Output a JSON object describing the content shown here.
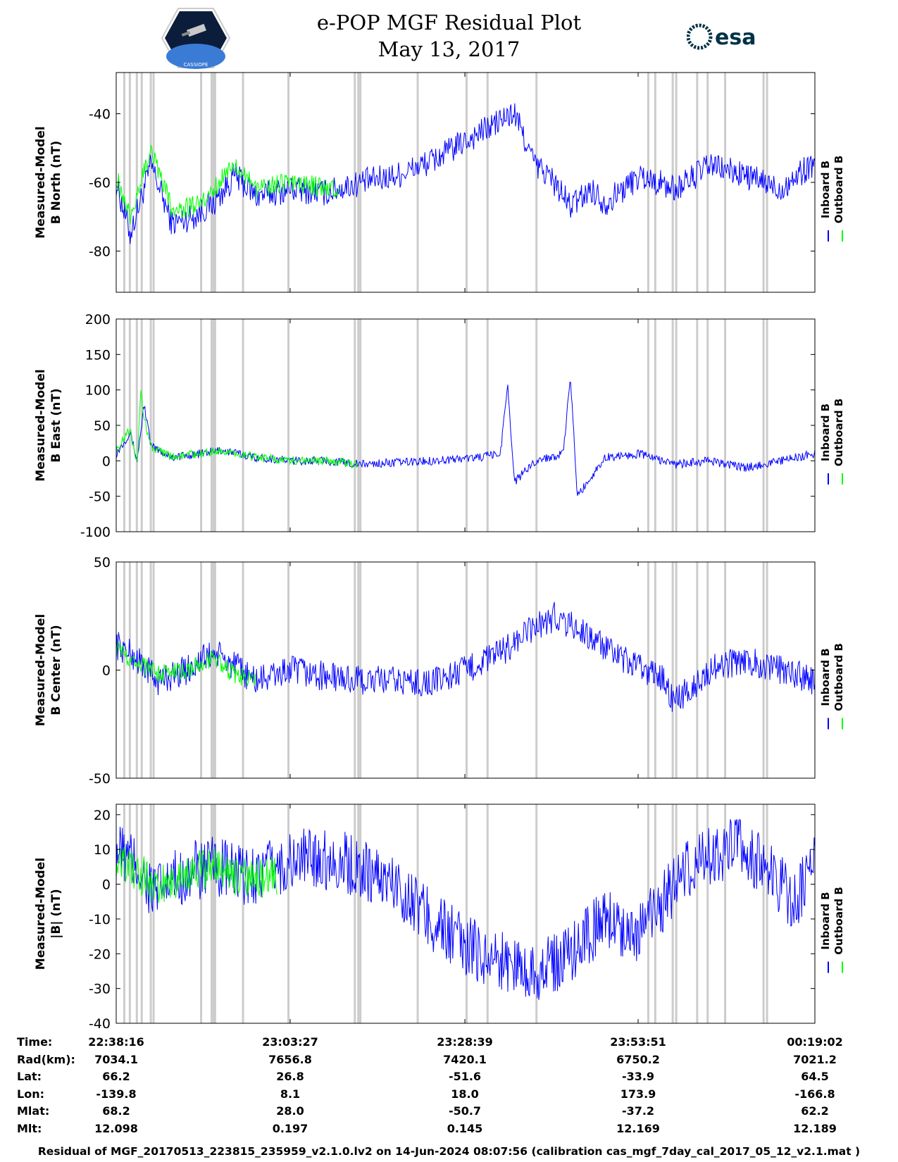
{
  "header": {
    "title": "e-POP MGF Residual Plot",
    "date": "May 13, 2017",
    "left_logo_text": "CASSIOPE",
    "right_logo_text": "esa"
  },
  "colors": {
    "inboard": "#0000ff",
    "outboard": "#00ff00",
    "gaps": "#cccccc"
  },
  "chart_data": [
    {
      "type": "line",
      "ylabel": [
        "Measured-Model",
        "B North (nT)"
      ],
      "ylim": [
        -92,
        -28
      ],
      "yticks": [
        -40,
        -60,
        -80
      ],
      "legend": [
        "Inboard B",
        "Outboard B"
      ],
      "series": [
        {
          "name": "Inboard B",
          "x": [
            0,
            0.02,
            0.05,
            0.08,
            0.11,
            0.14,
            0.17,
            0.2,
            0.25,
            0.3,
            0.35,
            0.4,
            0.45,
            0.5,
            0.55,
            0.57,
            0.6,
            0.62,
            0.65,
            0.68,
            0.7,
            0.75,
            0.8,
            0.85,
            0.9,
            0.95,
            1
          ],
          "y": [
            -60,
            -75,
            -55,
            -72,
            -70,
            -66,
            -58,
            -64,
            -62,
            -63,
            -60,
            -58,
            -54,
            -48,
            -42,
            -40,
            -55,
            -58,
            -67,
            -62,
            -66,
            -58,
            -62,
            -55,
            -58,
            -62,
            -54
          ],
          "spread": 8
        },
        {
          "name": "Outboard B",
          "x": [
            0,
            0.02,
            0.05,
            0.08,
            0.11,
            0.14,
            0.17,
            0.2,
            0.25,
            0.32
          ],
          "y": [
            -58,
            -70,
            -50,
            -68,
            -67,
            -62,
            -54,
            -62,
            -60,
            -62
          ],
          "spread": 6
        }
      ]
    },
    {
      "type": "line",
      "ylabel": [
        "Measured-Model",
        "B East (nT)"
      ],
      "ylim": [
        -100,
        200
      ],
      "yticks": [
        200,
        150,
        100,
        50,
        0,
        -50,
        -100
      ],
      "legend": [
        "Inboard B",
        "Outboard B"
      ],
      "series": [
        {
          "name": "Inboard B",
          "x": [
            0,
            0.02,
            0.03,
            0.04,
            0.05,
            0.08,
            0.12,
            0.15,
            0.2,
            0.25,
            0.3,
            0.35,
            0.45,
            0.52,
            0.55,
            0.56,
            0.57,
            0.6,
            0.64,
            0.65,
            0.66,
            0.7,
            0.75,
            0.8,
            0.85,
            0.9,
            0.95,
            1
          ],
          "y": [
            10,
            40,
            0,
            80,
            20,
            5,
            10,
            15,
            5,
            0,
            0,
            -5,
            0,
            5,
            10,
            110,
            -30,
            0,
            10,
            120,
            -50,
            5,
            10,
            -5,
            0,
            -10,
            0,
            10
          ],
          "spread": 12
        },
        {
          "name": "Outboard B",
          "x": [
            0,
            0.02,
            0.03,
            0.035,
            0.04,
            0.05,
            0.08,
            0.12,
            0.15,
            0.2,
            0.25,
            0.3,
            0.345
          ],
          "y": [
            15,
            45,
            -5,
            100,
            60,
            20,
            5,
            10,
            15,
            5,
            0,
            0,
            -5
          ],
          "spread": 12
        }
      ]
    },
    {
      "type": "line",
      "ylabel": [
        "Measured-Model",
        "B Center (nT)"
      ],
      "ylim": [
        -50,
        50
      ],
      "yticks": [
        50,
        0,
        -50
      ],
      "legend": [
        "Inboard B",
        "Outboard B"
      ],
      "series": [
        {
          "name": "Inboard B",
          "x": [
            0,
            0.03,
            0.06,
            0.1,
            0.14,
            0.2,
            0.25,
            0.3,
            0.35,
            0.4,
            0.45,
            0.5,
            0.55,
            0.6,
            0.63,
            0.68,
            0.72,
            0.78,
            0.8,
            0.85,
            0.9,
            0.95,
            1
          ],
          "y": [
            12,
            5,
            -5,
            0,
            8,
            -5,
            0,
            -3,
            -5,
            -5,
            -6,
            0,
            8,
            20,
            25,
            15,
            5,
            -3,
            -15,
            0,
            5,
            0,
            -5
          ],
          "spread": 14
        },
        {
          "name": "Outboard B",
          "x": [
            0,
            0.03,
            0.06,
            0.1,
            0.14,
            0.17,
            0.2
          ],
          "y": [
            10,
            3,
            -2,
            0,
            5,
            -2,
            -4
          ],
          "spread": 9
        }
      ]
    },
    {
      "type": "line",
      "ylabel": [
        "Measured-Model",
        "|B| (nT)"
      ],
      "ylim": [
        -40,
        23
      ],
      "yticks": [
        20,
        10,
        0,
        -10,
        -20,
        -30,
        -40
      ],
      "legend": [
        "Inboard B",
        "Outboard B"
      ],
      "series": [
        {
          "name": "Inboard B",
          "x": [
            0,
            0.03,
            0.055,
            0.1,
            0.14,
            0.18,
            0.22,
            0.28,
            0.33,
            0.4,
            0.45,
            0.5,
            0.55,
            0.6,
            0.63,
            0.7,
            0.75,
            0.8,
            0.84,
            0.88,
            0.9,
            0.95,
            0.97,
            1
          ],
          "y": [
            10,
            5,
            -3,
            3,
            5,
            2,
            4,
            8,
            6,
            0,
            -10,
            -18,
            -22,
            -25,
            -23,
            -10,
            -14,
            0,
            8,
            10,
            10,
            0,
            -5,
            5
          ],
          "spread": 18
        },
        {
          "name": "Outboard B",
          "x": [
            0,
            0.03,
            0.055,
            0.1,
            0.14,
            0.18,
            0.23
          ],
          "y": [
            8,
            4,
            -1,
            3,
            5,
            2,
            2
          ],
          "spread": 12
        }
      ]
    }
  ],
  "x_axis": {
    "ticks": [
      "22:38:16",
      "23:03:27",
      "23:28:39",
      "23:53:51",
      "00:19:02"
    ]
  },
  "orbit_table": {
    "rows": [
      {
        "label": "Time:",
        "values": [
          "22:38:16",
          "23:03:27",
          "23:28:39",
          "23:53:51",
          "00:19:02"
        ]
      },
      {
        "label": "Rad(km):",
        "values": [
          "7034.1",
          "7656.8",
          "7420.1",
          "6750.2",
          "7021.2"
        ]
      },
      {
        "label": "Lat:",
        "values": [
          "66.2",
          "26.8",
          "-51.6",
          "-33.9",
          "64.5"
        ]
      },
      {
        "label": "Lon:",
        "values": [
          "-139.8",
          "8.1",
          "18.0",
          "173.9",
          "-166.8"
        ]
      },
      {
        "label": "Mlat:",
        "values": [
          "68.2",
          "28.0",
          "-50.7",
          "-37.2",
          "62.2"
        ]
      },
      {
        "label": "Mlt:",
        "values": [
          "12.098",
          "0.197",
          "0.145",
          "12.169",
          "12.189"
        ]
      }
    ]
  },
  "footer": {
    "note": "Residual of MGF_20170513_223815_235959_v2.1.0.lv2 on 14-Jun-2024 08:07:56 (calibration cas_mgf_7day_cal_2017_05_12_v2.1.mat )"
  }
}
